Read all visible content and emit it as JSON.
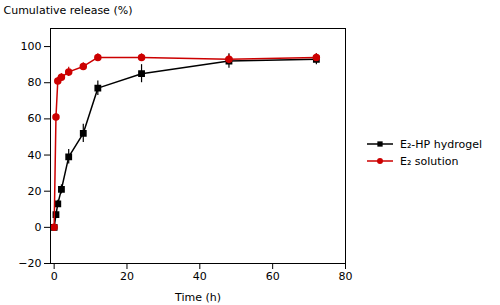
{
  "chart_data": {
    "type": "line",
    "xlabel": "Time (h)",
    "ylabel": "Cumulative release (%)",
    "x": [
      0,
      0.5,
      1,
      2,
      4,
      8,
      12,
      24,
      48,
      72
    ],
    "series": [
      {
        "name": "E₂-HP hydrogel",
        "color": "#000000",
        "marker": "square",
        "values": [
          0,
          7,
          13,
          21,
          39,
          52,
          77,
          85,
          92,
          93
        ],
        "errors": [
          0.5,
          1.5,
          2,
          2.5,
          4,
          5,
          4,
          5,
          4,
          3
        ]
      },
      {
        "name": "E₂ solution",
        "color": "#cc0000",
        "marker": "circle",
        "values": [
          0,
          61,
          81,
          83,
          86,
          89,
          94,
          94,
          93,
          94
        ],
        "errors": [
          0.5,
          2,
          2,
          2,
          2.5,
          2,
          2,
          2,
          2.5,
          2
        ]
      }
    ],
    "xlim": [
      -1,
      80
    ],
    "xticks": [
      0,
      20,
      40,
      60,
      80
    ],
    "ylim": [
      -20,
      110
    ],
    "yticks": [
      -20,
      0,
      20,
      40,
      60,
      80,
      100
    ],
    "grid": false,
    "legend": "right"
  }
}
